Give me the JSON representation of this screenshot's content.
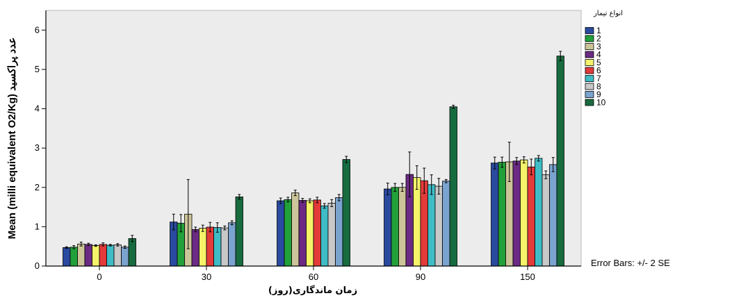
{
  "chart_data": {
    "type": "bar",
    "xlabel": "زمان ماندگاری(روز)",
    "ylabel": "Mean (milli equivalent O2/Kg) عدد پراکسید",
    "legend_title": "انواع تیمار",
    "legend_position": "right",
    "note": "Error Bars: +/- 2 SE",
    "categories": [
      "0",
      "30",
      "60",
      "90",
      "150"
    ],
    "ylim": [
      0,
      6.5
    ],
    "yticks": [
      "0",
      "1",
      "2",
      "3",
      "4",
      "5",
      "6"
    ],
    "series": [
      {
        "name": "1",
        "color": "#2a4a9f",
        "values": [
          0.47,
          1.12,
          1.66,
          1.96,
          2.62
        ],
        "errors": [
          0.02,
          0.2,
          0.07,
          0.15,
          0.15
        ]
      },
      {
        "name": "2",
        "color": "#22a03a",
        "values": [
          0.48,
          1.09,
          1.69,
          2.0,
          2.64
        ],
        "errors": [
          0.04,
          0.22,
          0.06,
          0.1,
          0.13
        ]
      },
      {
        "name": "3",
        "color": "#cdc59a",
        "values": [
          0.56,
          1.32,
          1.86,
          2.0,
          2.65
        ],
        "errors": [
          0.05,
          0.88,
          0.07,
          0.1,
          0.5
        ]
      },
      {
        "name": "4",
        "color": "#6b2a83",
        "values": [
          0.55,
          0.93,
          1.67,
          2.33,
          2.67
        ],
        "errors": [
          0.03,
          0.06,
          0.05,
          0.57,
          0.09
        ]
      },
      {
        "name": "5",
        "color": "#f4f36a",
        "values": [
          0.52,
          0.96,
          1.66,
          2.25,
          2.7
        ],
        "errors": [
          0.02,
          0.08,
          0.05,
          0.3,
          0.08
        ]
      },
      {
        "name": "6",
        "color": "#e33a3a",
        "values": [
          0.55,
          0.99,
          1.68,
          2.17,
          2.52
        ],
        "errors": [
          0.04,
          0.12,
          0.07,
          0.32,
          0.2
        ]
      },
      {
        "name": "7",
        "color": "#3fbcc6",
        "values": [
          0.53,
          0.98,
          1.53,
          2.07,
          2.74
        ],
        "errors": [
          0.02,
          0.12,
          0.06,
          0.25,
          0.07
        ]
      },
      {
        "name": "8",
        "color": "#c8c8c8",
        "values": [
          0.54,
          0.97,
          1.6,
          2.03,
          2.32
        ],
        "errors": [
          0.03,
          0.05,
          0.09,
          0.2,
          0.1
        ]
      },
      {
        "name": "9",
        "color": "#7ba3cf",
        "values": [
          0.48,
          1.1,
          1.74,
          2.16,
          2.58
        ],
        "errors": [
          0.03,
          0.05,
          0.08,
          0.04,
          0.18
        ]
      },
      {
        "name": "10",
        "color": "#176b3f",
        "values": [
          0.7,
          1.76,
          2.71,
          4.05,
          5.34
        ],
        "errors": [
          0.08,
          0.06,
          0.08,
          0.04,
          0.12
        ]
      }
    ]
  },
  "colors": {
    "plot_bg": "#ececec",
    "axis": "#000000"
  }
}
